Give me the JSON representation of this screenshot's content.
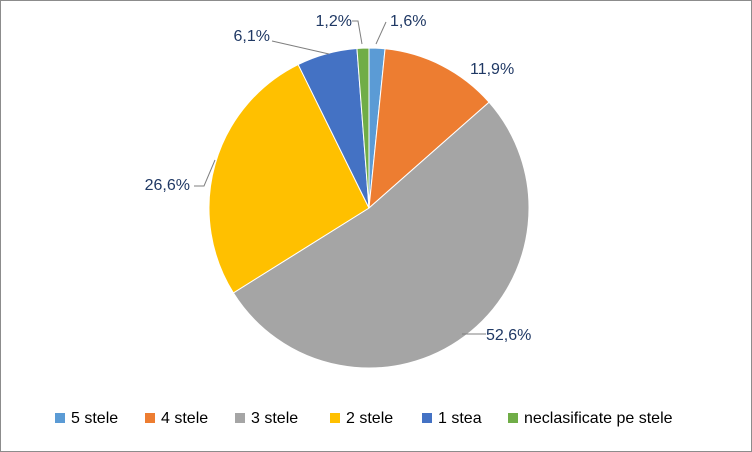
{
  "chart_data": {
    "type": "pie",
    "title": "",
    "legend_position": "bottom",
    "slices": [
      {
        "name": "5 stele",
        "value": 1.6,
        "label": "1,6%",
        "color": "#5b9bd5"
      },
      {
        "name": "4 stele",
        "value": 11.9,
        "label": "11,9%",
        "color": "#ed7d31"
      },
      {
        "name": "3 stele",
        "value": 52.6,
        "label": "52,6%",
        "color": "#a5a5a5"
      },
      {
        "name": "2 stele",
        "value": 26.6,
        "label": "26,6%",
        "color": "#ffc000"
      },
      {
        "name": "1 stea",
        "value": 6.1,
        "label": "6,1%",
        "color": "#4472c4"
      },
      {
        "name": "neclasificate pe stele",
        "value": 1.2,
        "label": "1,2%",
        "color": "#70ad47"
      }
    ]
  }
}
